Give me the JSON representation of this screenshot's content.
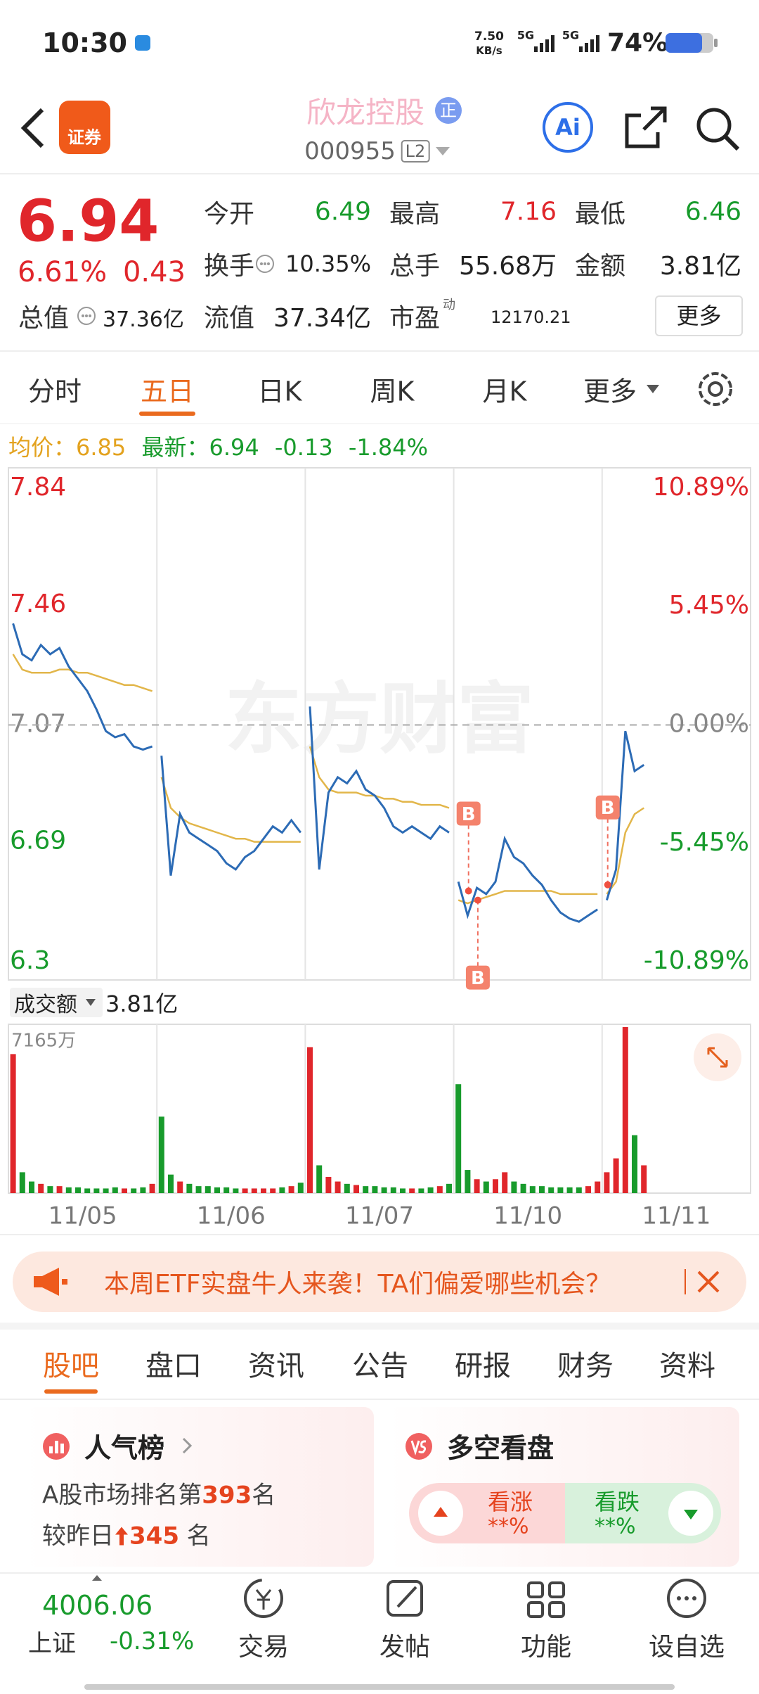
{
  "status_bar": {
    "time": "10:30",
    "speed": "7.50",
    "speed_unit": "KB/s",
    "network_1": "5G",
    "network_2": "5G",
    "battery": "74%"
  },
  "header": {
    "badge": "证券",
    "stock_name": "欣龙控股",
    "name_tag": "正",
    "stock_code": "000955",
    "level": "L2",
    "ai_button": "Ai"
  },
  "quote": {
    "price": "6.94",
    "change_percent": "6.61%",
    "change": "0.43",
    "fields": [
      {
        "label": "今开",
        "value": "6.49"
      },
      {
        "label": "最高",
        "value": "7.16"
      },
      {
        "label": "最低",
        "value": "6.46"
      },
      {
        "label": "换手",
        "value": "10.35%"
      },
      {
        "label": "总手",
        "value": "55.68万"
      },
      {
        "label": "金额",
        "value": "3.81亿"
      },
      {
        "label": "总值",
        "value": "37.36亿"
      },
      {
        "label": "流值",
        "value": "37.34亿"
      },
      {
        "label": "市盈",
        "superscript": "动",
        "value": "12170.21"
      }
    ],
    "more_button": "更多"
  },
  "chart_tabs": [
    "分时",
    "五日",
    "日K",
    "周K",
    "月K",
    "更多"
  ],
  "chart_info": {
    "avg_label": "均价：",
    "avg_value": "6.85",
    "latest_label": "最新：",
    "latest_value": "6.94",
    "change": "-0.13",
    "change_percent": "-1.84%"
  },
  "watermark": "东方财富",
  "chart_data": [
    {
      "type": "line",
      "categories": [
        "11/05",
        "11/06",
        "11/07",
        "11/10",
        "11/11"
      ],
      "series": [
        {
          "color": "#2c6bb5",
          "values": [
            [
              7.4,
              7.3,
              7.28,
              7.33,
              7.3,
              7.32,
              7.26,
              7.22,
              7.18,
              7.12,
              7.05,
              7.03,
              7.04,
              7.0,
              6.99,
              7.0
            ],
            [
              6.97,
              6.58,
              6.78,
              6.72,
              6.7,
              6.68,
              6.66,
              6.62,
              6.6,
              6.64,
              6.66,
              6.7,
              6.74,
              6.72,
              6.76,
              6.72
            ],
            [
              7.13,
              6.6,
              6.85,
              6.9,
              6.88,
              6.92,
              6.86,
              6.84,
              6.8,
              6.74,
              6.72,
              6.74,
              6.72,
              6.7,
              6.74,
              6.72
            ],
            [
              6.56,
              6.45,
              6.54,
              6.52,
              6.56,
              6.7,
              6.64,
              6.62,
              6.58,
              6.55,
              6.5,
              6.46,
              6.44,
              6.43,
              6.45,
              6.47
            ],
            [
              6.5,
              6.6,
              7.05,
              6.92,
              6.94
            ]
          ]
        },
        {
          "color": "#e2b64a",
          "values": [
            [
              7.3,
              7.25,
              7.24,
              7.24,
              7.24,
              7.25,
              7.25,
              7.24,
              7.24,
              7.23,
              7.22,
              7.21,
              7.2,
              7.2,
              7.19,
              7.18
            ],
            [
              6.9,
              6.8,
              6.77,
              6.75,
              6.74,
              6.73,
              6.72,
              6.71,
              6.7,
              6.7,
              6.69,
              6.69,
              6.69,
              6.69,
              6.69,
              6.69
            ],
            [
              7.0,
              6.9,
              6.86,
              6.85,
              6.85,
              6.85,
              6.84,
              6.84,
              6.83,
              6.83,
              6.82,
              6.82,
              6.81,
              6.81,
              6.81,
              6.8
            ],
            [
              6.5,
              6.49,
              6.5,
              6.51,
              6.52,
              6.53,
              6.53,
              6.53,
              6.53,
              6.53,
              6.53,
              6.52,
              6.52,
              6.52,
              6.52,
              6.52
            ],
            [
              6.52,
              6.56,
              6.72,
              6.78,
              6.8
            ]
          ]
        }
      ],
      "ylim": [
        6.3,
        7.84
      ],
      "yticks": [
        7.84,
        7.46,
        7.07,
        6.69,
        6.3
      ],
      "y2lim": [
        -10.89,
        10.89
      ],
      "y2ticks": [
        {
          "value": 10.89,
          "label": "10.89%"
        },
        {
          "value": 5.45,
          "label": "5.45%"
        },
        {
          "value": 0,
          "label": "0.00%"
        },
        {
          "value": -5.45,
          "label": "-5.45%"
        },
        {
          "value": -10.89,
          "label": "-10.89%"
        }
      ],
      "markers": [
        {
          "label": "B",
          "value": 6.53
        },
        {
          "label": "B",
          "value": 6.5
        },
        {
          "label": "B",
          "value": 6.55
        }
      ]
    },
    {
      "type": "bar",
      "title": "成交额",
      "subtitle": "3.81亿",
      "up_color": "#e0262b",
      "down_color": "#189b2c",
      "values": [
        [
          6000,
          900,
          500,
          400,
          300,
          300,
          250,
          250,
          200,
          200,
          200,
          250,
          200,
          200,
          250,
          400
        ],
        [
          3300,
          800,
          500,
          400,
          300,
          300,
          250,
          250,
          200,
          200,
          200,
          200,
          200,
          250,
          300,
          450
        ],
        [
          6300,
          1200,
          700,
          500,
          400,
          350,
          300,
          300,
          250,
          250,
          200,
          200,
          200,
          250,
          300,
          400
        ],
        [
          4700,
          1000,
          600,
          500,
          600,
          900,
          500,
          400,
          300,
          300,
          250,
          250,
          250,
          250,
          300,
          500
        ],
        [
          900,
          1500,
          7165,
          2500,
          1200
        ]
      ],
      "ylim": [
        0,
        7165
      ],
      "yticks": [
        {
          "value": 7165,
          "label": "7165万"
        }
      ]
    }
  ],
  "banner": {
    "text": "本周ETF实盘牛人来袭！TA们偏爱哪些机会？"
  },
  "content_tabs": [
    "股吧",
    "盘口",
    "资讯",
    "公告",
    "研报",
    "财务",
    "资料"
  ],
  "cards": {
    "popularity": {
      "title": "人气榜",
      "rank_prefix": "A股市场排名第",
      "rank": "393",
      "rank_suffix": "名",
      "change_prefix": "较昨日",
      "change": "345",
      "change_suffix": "名"
    },
    "sentiment": {
      "title": "多空看盘",
      "bull_label": "看涨",
      "bull_value": "**%",
      "bear_label": "看跌",
      "bear_value": "**%"
    }
  },
  "bottom_nav": {
    "index_value": "4006.06",
    "index_name": "上证",
    "index_change": "-0.31%",
    "items": [
      "交易",
      "发帖",
      "功能",
      "设自选"
    ]
  }
}
